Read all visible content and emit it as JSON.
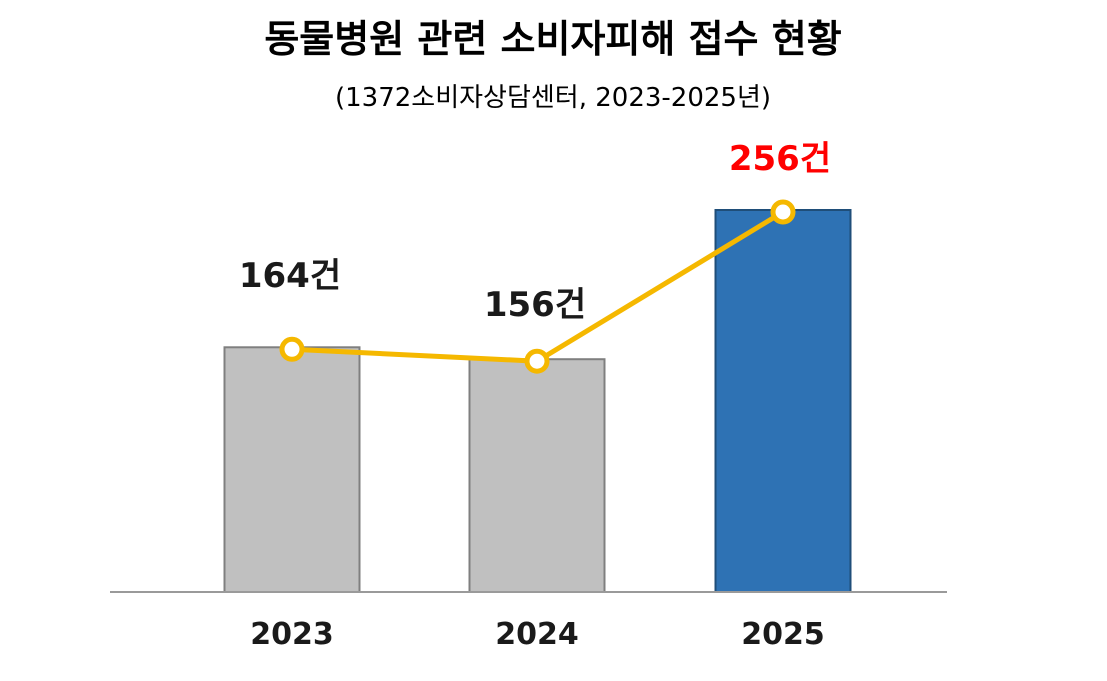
{
  "chart_data": {
    "type": "bar",
    "title": "동물병원 관련 소비자피해 접수 현황",
    "subtitle": "(1372소비자상담센터, 2023-2025년)",
    "categories": [
      "2023",
      "2024",
      "2025"
    ],
    "values": [
      164,
      156,
      256
    ],
    "data_labels": [
      "164건",
      "156건",
      "256건"
    ],
    "ylim": [
      0,
      270
    ],
    "grid": false,
    "legend": "none",
    "overlay_line": true,
    "colors": {
      "bar_default": "#c0c0c0",
      "bar_default_stroke": "#7f7f7f",
      "bar_highlight": "#2e72b4",
      "bar_highlight_stroke": "#1f4e79",
      "line": "#f5b800",
      "label_default": "#1a1a1a",
      "label_highlight": "#ff0000",
      "axis": "#9a9a9a"
    },
    "highlight_index": 2
  }
}
